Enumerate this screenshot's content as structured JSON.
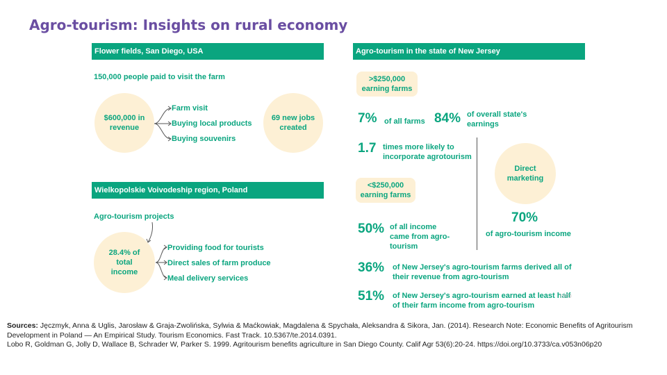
{
  "title": "Agro-tourism: Insights on rural economy",
  "left": {
    "section1": {
      "header": "Flower fields, San Diego, USA",
      "visitors": "150,000 people paid to visit the farm",
      "revenue_line1": "$600,000 in",
      "revenue_line2": "revenue",
      "items": [
        "Farm visit",
        "Buying local products",
        "Buying souvenirs"
      ],
      "jobs_line1": "69 new jobs",
      "jobs_line2": "created"
    },
    "section2": {
      "header": "Wielkopolskie Voivodeship region, Poland",
      "projects": "Agro-tourism projects",
      "income_line1": "28.4% of",
      "income_line2": "total",
      "income_line3": "income",
      "items": [
        "Providing food for tourists",
        "Direct sales of farm produce",
        "Meal delivery services"
      ]
    }
  },
  "right": {
    "header": "Agro-tourism in the state of New Jersey",
    "high_pill_line1": ">$250,000",
    "high_pill_line2": "earning farms",
    "stat_7": "7%",
    "stat_7_text": "of all farms",
    "stat_84": "84%",
    "stat_84_line1": "of overall state's",
    "stat_84_line2": "earnings",
    "stat_17": "1.7",
    "stat_17_line1": "times more likely to",
    "stat_17_line2": "incorporate agrotourism",
    "low_pill_line1": "<$250,000",
    "low_pill_line2": "earning farms",
    "direct_line1": "Direct",
    "direct_line2": "marketing",
    "stat_50": "50%",
    "stat_50_line1": "of all income",
    "stat_50_line2": "came from agro-",
    "stat_50_line3": "tourism",
    "stat_70": "70%",
    "stat_70_text": "of agro-tourism income",
    "stat_36": "36%",
    "stat_36_line1": "of New Jersey's agro-tourism farms derived all of",
    "stat_36_line2": "their revenue from agro-tourism",
    "stat_51": "51%",
    "stat_51_line1": "of New Jersey's agro-tourism earned at least half",
    "stat_51_line2": "of their farm income from agro-tourism",
    "stray_text": "niro"
  },
  "sources": {
    "label": "Sources:",
    "line1": " Jęczmyk, Anna & Uglis, Jarosław & Graja-Zwolińska, Sylwia & Maćkowiak, Magdalena & Spychała, Aleksandra & Sikora, Jan. (2014). Research Note: Economic Benefits of Agritourism Development in Poland — An Empirical Study. Tourism Economics. Fast Track. 10.5367/te.2014.0391.",
    "line2": "Lobo R, Goldman G, Jolly D, Wallace B, Schrader W, Parker S. 1999. Agritourism benefits agriculture in San Diego County. Calif Agr 53(6):20-24. https://doi.org/10.3733/ca.v053n06p20"
  },
  "colors": {
    "accent": "#0aa57f",
    "title": "#6a4ea2",
    "circle_fill": "#fdf0d5"
  }
}
